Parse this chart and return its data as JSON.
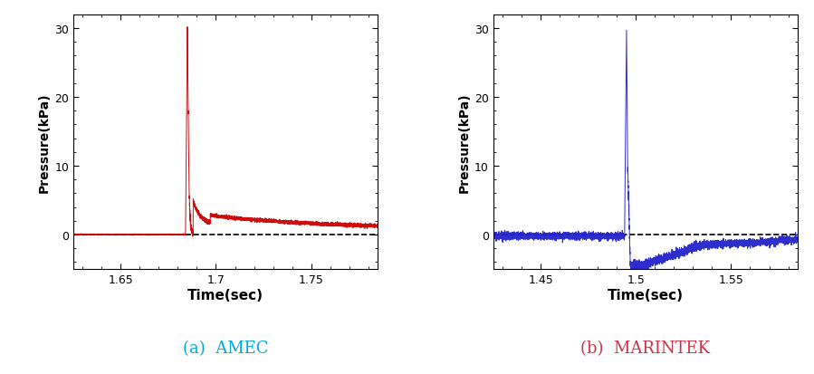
{
  "left_plot": {
    "title": "(a)  AMEC",
    "title_color": "#00AADD",
    "xlabel": "Time(sec)",
    "ylabel": "Pressure(kPa)",
    "line_color": "#CC0000",
    "xlim": [
      1.625,
      1.785
    ],
    "ylim": [
      -5,
      32
    ],
    "yticks": [
      0,
      10,
      20,
      30
    ],
    "ytick_labels": [
      "0",
      "10",
      "20",
      "30"
    ],
    "xticks": [
      1.65,
      1.7,
      1.75
    ],
    "xtick_labels": [
      "1.65",
      "1.7",
      "1.75"
    ],
    "spike_time": 1.685,
    "spike_peak": 30
  },
  "right_plot": {
    "title": "(b)  MARINTEK",
    "title_color": "#CC3344",
    "xlabel": "Time(sec)",
    "ylabel": "Pressure(kPa)",
    "line_color": "#2222CC",
    "xlim": [
      1.425,
      1.585
    ],
    "ylim": [
      -5,
      32
    ],
    "yticks": [
      0,
      10,
      20,
      30
    ],
    "ytick_labels": [
      "0",
      "10",
      "20",
      "30"
    ],
    "xticks": [
      1.45,
      1.5,
      1.55
    ],
    "xtick_labels": [
      "1.45",
      "1.5",
      "1.55"
    ],
    "spike_time": 1.495,
    "spike_peak": 30
  },
  "background_color": "#FFFFFF",
  "dashed_line_color": "#000000",
  "fig_width": 8.99,
  "fig_height": 4.14
}
